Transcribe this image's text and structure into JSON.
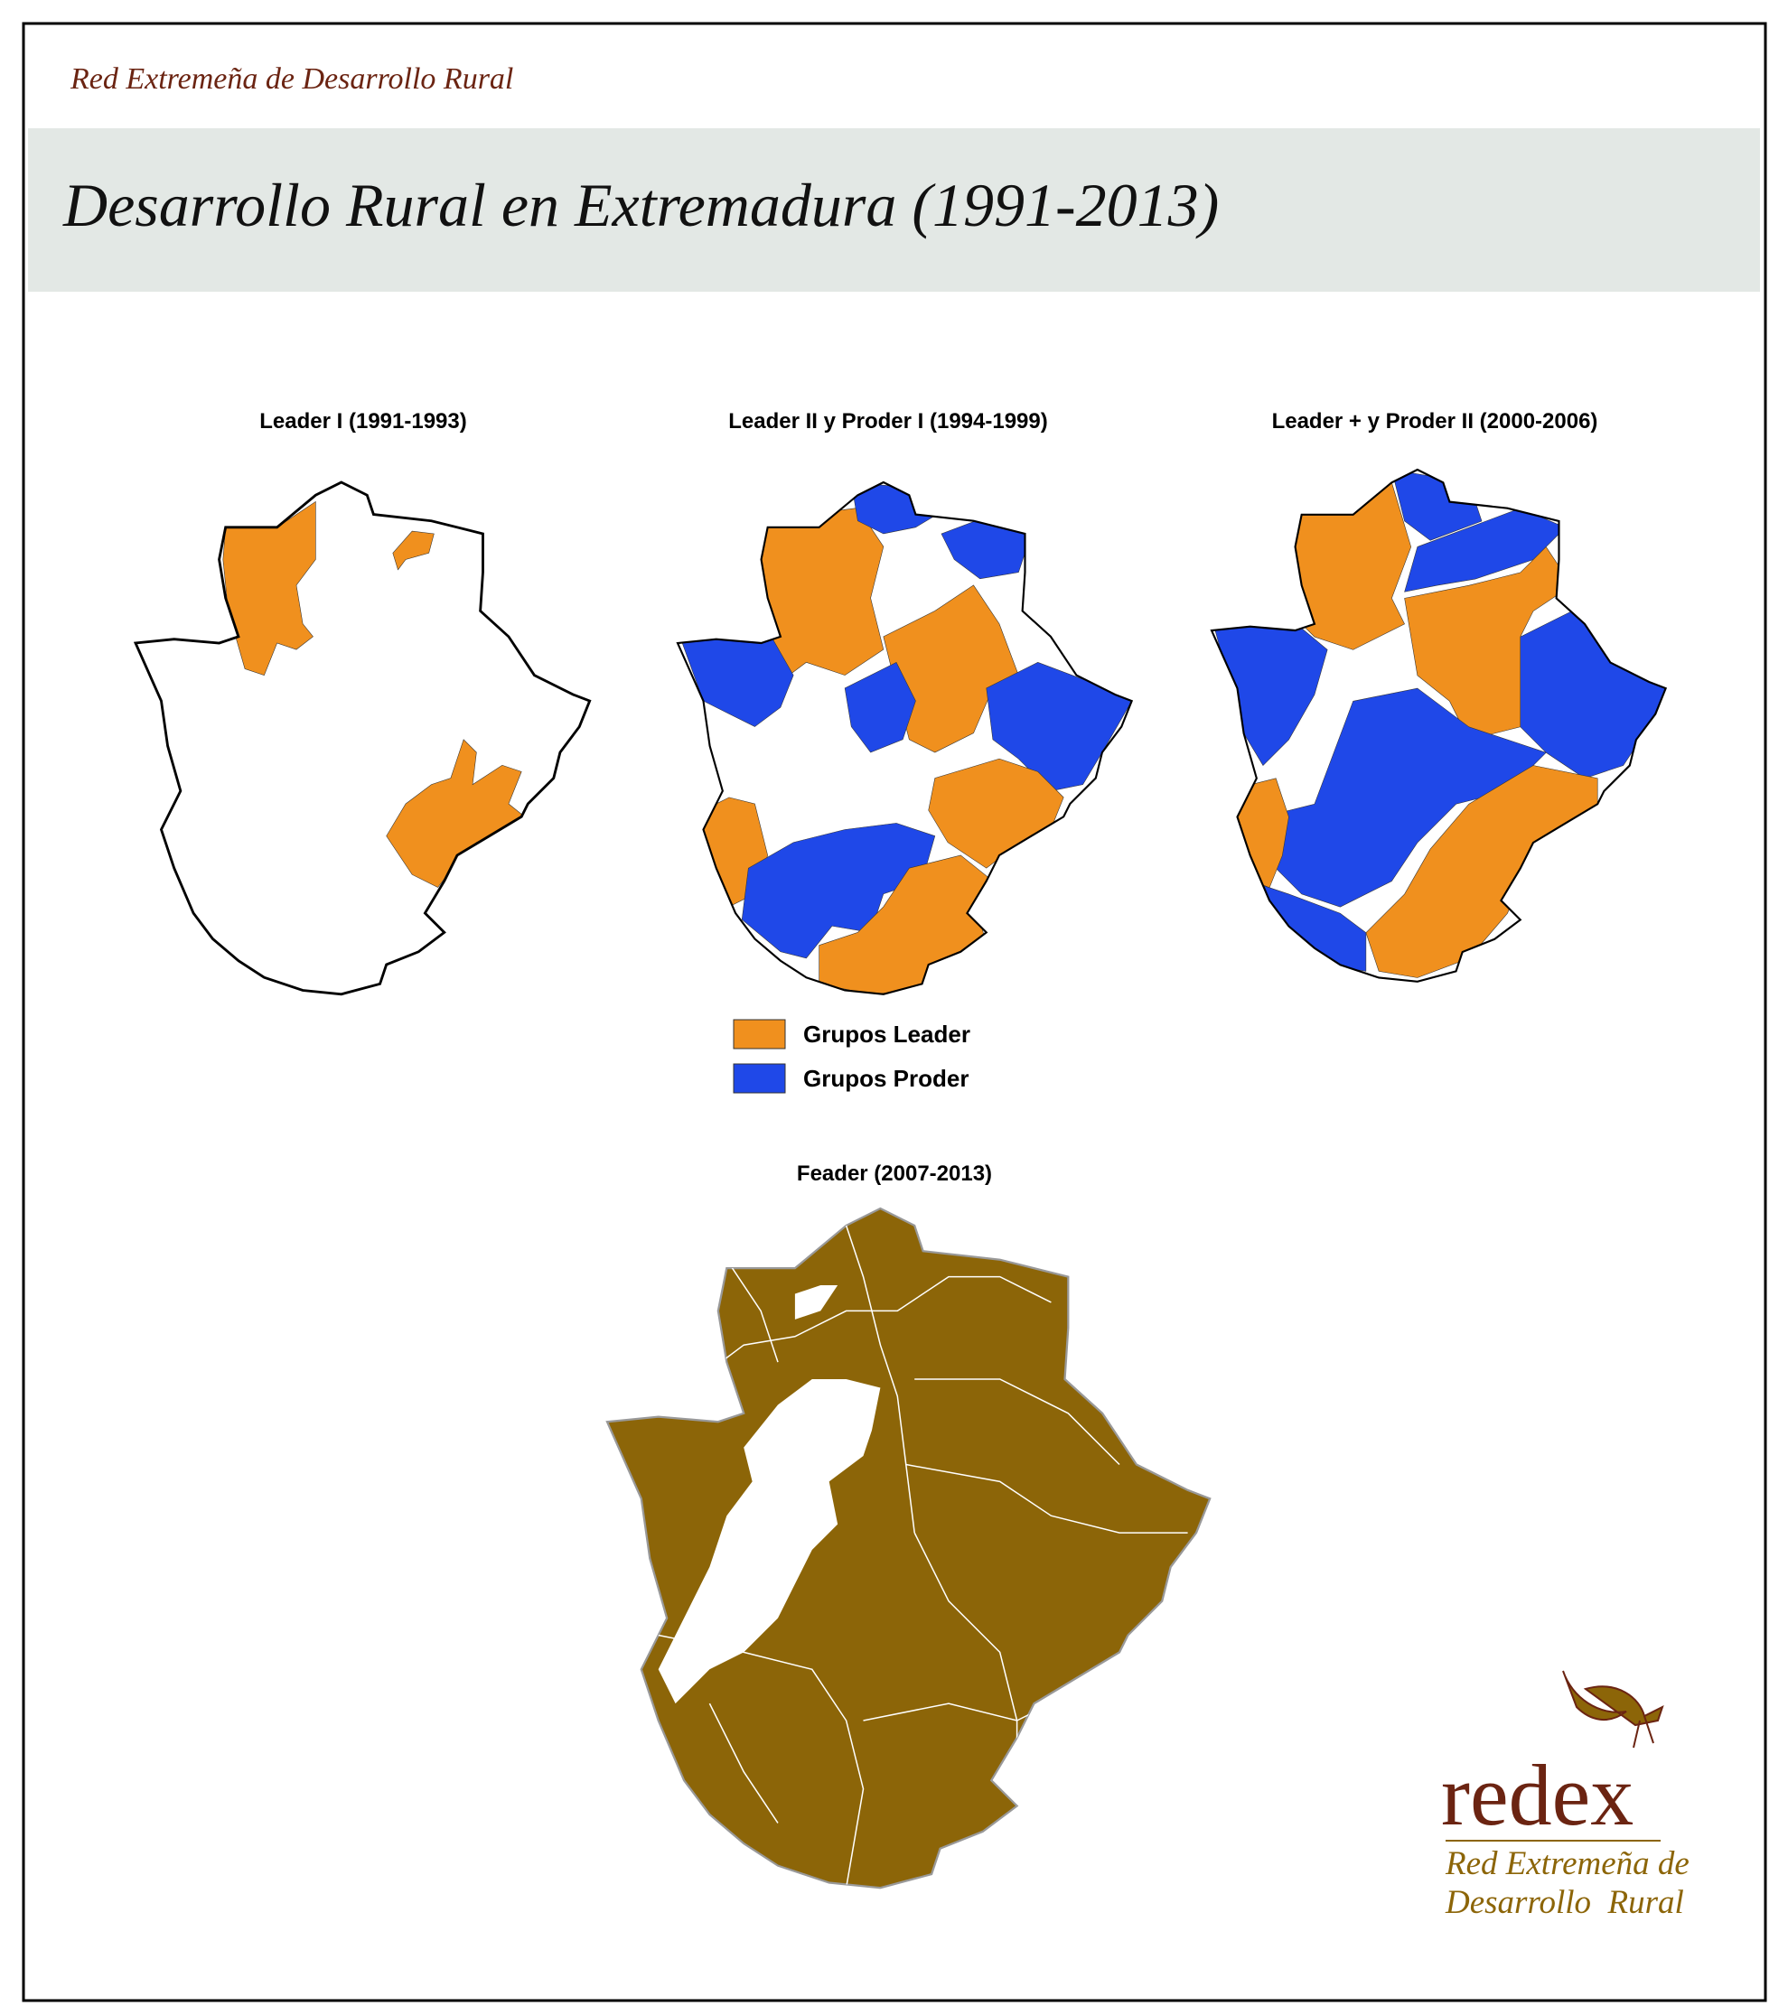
{
  "header": {
    "subtitle": "Red Extremeña de Desarrollo Rural",
    "title": "Desarrollo Rural en Extremadura (1991-2013)"
  },
  "maps": [
    {
      "title": "Leader I (1991-1993)"
    },
    {
      "title": "Leader II y Proder I (1994-1999)"
    },
    {
      "title": "Leader + y Proder II (2000-2006)"
    },
    {
      "title": "Feader (2007-2013)",
      "color": "#8c6508"
    }
  ],
  "legend": [
    {
      "label": "Grupos Leader",
      "color": "#f0901e"
    },
    {
      "label": "Grupos Proder",
      "color": "#1f48e8"
    }
  ],
  "logo": {
    "wordmark": "redex",
    "lines": [
      "Red Extremeña de",
      "Desarrollo  Rural"
    ]
  }
}
